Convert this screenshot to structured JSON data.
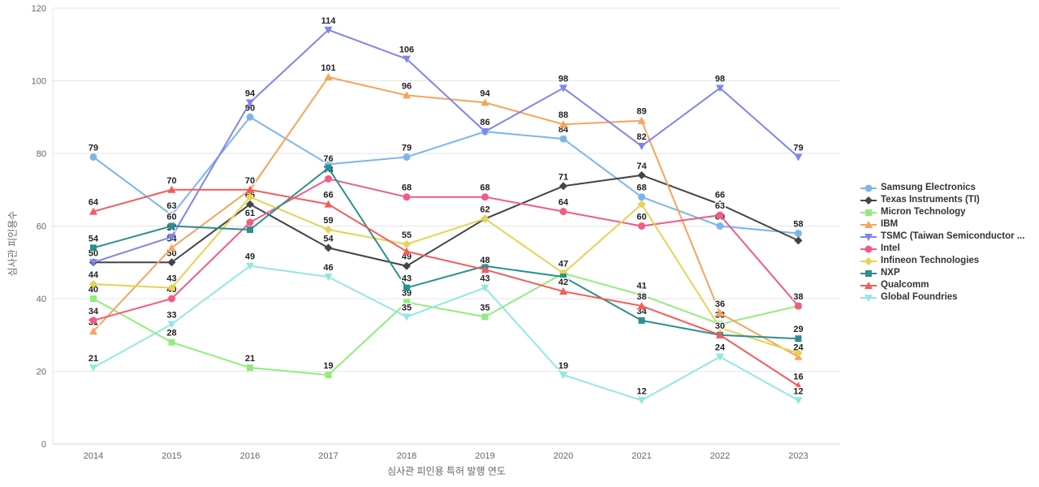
{
  "chart_data": {
    "type": "line",
    "title": "",
    "xlabel": "심사관 피인용 특허 발행 연도",
    "ylabel": "심사관 피인용수",
    "x_categories": [
      "2014",
      "2015",
      "2016",
      "2017",
      "2018",
      "2019",
      "2020",
      "2021",
      "2022",
      "2023"
    ],
    "y_ticks": [
      0,
      20,
      40,
      60,
      80,
      100,
      120
    ],
    "ylim": [
      0,
      120
    ],
    "grid": true,
    "legend_position": "right",
    "colors": {
      "grid": "#e6e6e6",
      "axis_line": "#ccd6eb",
      "tick_text": "#666666",
      "label_text": "#222222"
    },
    "series": [
      {
        "name": "Samsung Electronics",
        "color": "#7cb5ec",
        "marker": "circle",
        "values": [
          79,
          63,
          90,
          77,
          79,
          86,
          84,
          68,
          60,
          58
        ],
        "hidden_labels": [
          3,
          5
        ]
      },
      {
        "name": "Texas Instruments (TI)",
        "color": "#434348",
        "marker": "diamond",
        "values": [
          50,
          50,
          66,
          54,
          49,
          62,
          71,
          74,
          66,
          56
        ],
        "hidden_labels": [
          0,
          9
        ]
      },
      {
        "name": "Micron Technology",
        "color": "#90ed7d",
        "marker": "square",
        "values": [
          40,
          28,
          21,
          19,
          39,
          35,
          47,
          41,
          33,
          38
        ],
        "hidden_labels": [
          6,
          9
        ]
      },
      {
        "name": "IBM",
        "color": "#f7a35c",
        "marker": "triangle",
        "values": [
          31,
          54,
          70,
          101,
          96,
          94,
          88,
          89,
          36,
          24
        ],
        "hidden_labels": []
      },
      {
        "name": "TSMC (Taiwan Semiconductor ...",
        "color": "#8085e9",
        "marker": "triangle-down",
        "values": [
          50,
          57,
          94,
          114,
          106,
          86,
          98,
          82,
          98,
          79
        ],
        "hidden_labels": []
      },
      {
        "name": "Intel",
        "color": "#f15c80",
        "marker": "circle",
        "values": [
          34,
          40,
          61,
          73,
          68,
          68,
          64,
          60,
          63,
          38
        ],
        "hidden_labels": []
      },
      {
        "name": "Infineon Technologies",
        "color": "#e4d354",
        "marker": "diamond",
        "values": [
          44,
          43,
          68,
          59,
          55,
          62,
          47,
          66,
          32,
          25
        ],
        "hidden_labels": [
          2,
          5,
          7,
          8,
          9
        ]
      },
      {
        "name": "NXP",
        "color": "#2b908f",
        "marker": "square",
        "values": [
          54,
          60,
          59,
          76,
          43,
          49,
          46,
          34,
          30,
          29
        ],
        "hidden_labels": [
          2,
          5,
          6,
          8
        ]
      },
      {
        "name": "Qualcomm",
        "color": "#f45b5b",
        "marker": "triangle",
        "values": [
          64,
          70,
          70,
          66,
          53,
          48,
          42,
          38,
          30,
          16
        ],
        "hidden_labels": [
          2,
          4
        ]
      },
      {
        "name": "Global Foundries",
        "color": "#91e8e1",
        "marker": "triangle-down",
        "values": [
          21,
          33,
          49,
          46,
          35,
          43,
          19,
          12,
          24,
          12
        ],
        "hidden_labels": []
      }
    ]
  }
}
